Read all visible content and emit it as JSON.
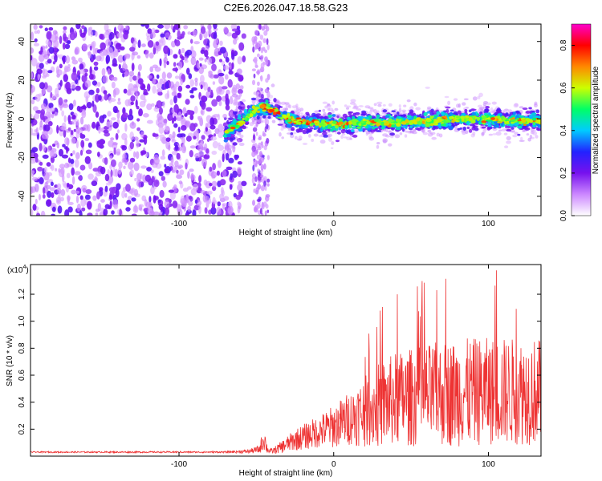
{
  "figure_title": "C2E6.2026.047.18.58.G23",
  "chart_data": [
    {
      "type": "heatmap",
      "title": "C2E6.2026.047.18.58.G23",
      "xlabel": "Height of straight line (km)",
      "ylabel": "Frequency (Hz)",
      "xlim": [
        -196,
        134
      ],
      "ylim": [
        -50,
        49
      ],
      "xticks": [
        -100,
        0,
        100
      ],
      "xtick_labels": [
        "-100",
        "0",
        "100"
      ],
      "yticks": [
        -40,
        -20,
        0,
        20,
        40
      ],
      "ytick_labels": [
        "-40",
        "-20",
        "0",
        "20",
        "40"
      ],
      "colorbar": {
        "label": "Normalized spectral amplitude",
        "range": [
          0.0,
          0.9
        ],
        "ticks": [
          0.0,
          0.2,
          0.4,
          0.6,
          0.8
        ],
        "tick_labels": [
          "0.0",
          "0.2",
          "0.4",
          "0.6",
          "0.8"
        ],
        "colormap": [
          "#ffffff",
          "#cc88ff",
          "#7711ee",
          "#2222ff",
          "#00ccff",
          "#00ff66",
          "#ccff00",
          "#ff8800",
          "#ff0000",
          "#ff00cc"
        ]
      },
      "noise_region_x": [
        -196,
        -58
      ],
      "noise_gap_x": [
        -58,
        -52
      ],
      "noise_band_x": [
        -52,
        -42
      ],
      "ridge": {
        "description": "Doppler ridge centre frequency (Hz) vs height (km)",
        "x": [
          -70,
          -60,
          -52,
          -46,
          -40,
          -30,
          -20,
          -10,
          0,
          20,
          40,
          60,
          80,
          100,
          120,
          134
        ],
        "y": [
          -8,
          -2,
          4,
          6,
          5,
          0,
          -2,
          -2,
          -3,
          -2,
          -2,
          -1,
          0,
          0,
          -1,
          -1
        ],
        "peak_amplitude": 0.85
      }
    },
    {
      "type": "line",
      "xlabel": "Height of straight line (km)",
      "ylabel": "SNR (10 * v/v)",
      "y_multiplier_label": "(x10",
      "y_multiplier_exponent": "4",
      "xlim": [
        -196,
        134
      ],
      "ylim": [
        0,
        1.42
      ],
      "xticks": [
        -100,
        0,
        100
      ],
      "xtick_labels": [
        "-100",
        "0",
        "100"
      ],
      "yticks": [
        0.2,
        0.4,
        0.6,
        0.8,
        1.0,
        1.2
      ],
      "ytick_labels": [
        "0.2",
        "0.4",
        "0.6",
        "0.8",
        "1.0",
        "1.2"
      ],
      "series": [
        {
          "name": "SNR",
          "color": "#ee3333",
          "envelope": {
            "x": [
              -196,
              -70,
              -55,
              -48,
              -45,
              -43,
              -40,
              -35,
              -25,
              -10,
              0,
              10,
              20,
              30,
              40,
              60,
              80,
              100,
              120,
              134
            ],
            "base": [
              0.03,
              0.03,
              0.035,
              0.05,
              0.14,
              0.05,
              0.035,
              0.06,
              0.12,
              0.18,
              0.22,
              0.28,
              0.33,
              0.38,
              0.42,
              0.45,
              0.47,
              0.48,
              0.48,
              0.48
            ],
            "spread": [
              0.005,
              0.006,
              0.015,
              0.03,
              0.1,
              0.03,
              0.02,
              0.04,
              0.08,
              0.12,
              0.16,
              0.2,
              0.26,
              0.32,
              0.35,
              0.38,
              0.4,
              0.4,
              0.4,
              0.4
            ]
          }
        }
      ]
    }
  ]
}
